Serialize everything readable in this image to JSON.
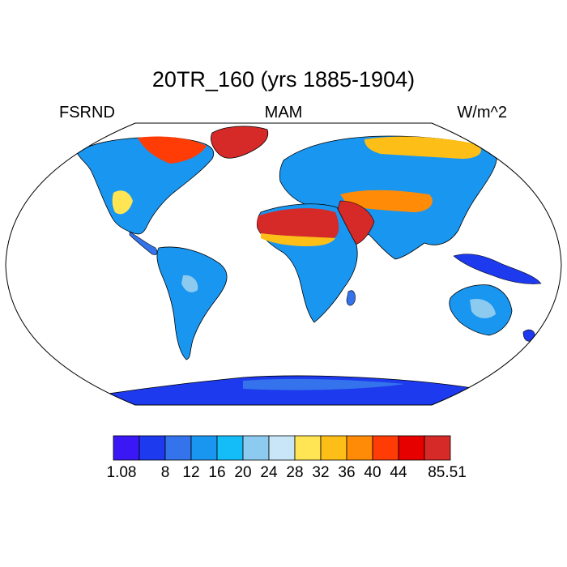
{
  "title": "20TR_160 (yrs 1885-1904)",
  "left_label": "FSRND",
  "center_label": "MAM",
  "right_label": "W/m^2",
  "colorbar": {
    "colors": [
      "#3b17f5",
      "#1d3aee",
      "#3473eb",
      "#1996f0",
      "#14bdf8",
      "#8ccbef",
      "#c9e6f8",
      "#ffe553",
      "#fdbf17",
      "#ff8b06",
      "#ff3b06",
      "#e60000",
      "#d62a28"
    ],
    "labels": [
      "1.08",
      "8",
      "12",
      "16",
      "20",
      "24",
      "28",
      "32",
      "36",
      "40",
      "44",
      "85.51"
    ]
  },
  "palette": {
    "land_outline": "#000000",
    "projection_outline": "#000000"
  }
}
